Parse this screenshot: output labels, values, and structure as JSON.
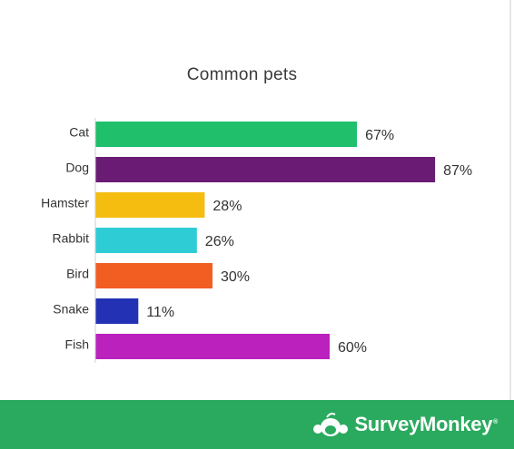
{
  "chart_data": {
    "type": "bar",
    "orientation": "horizontal",
    "title": "Common pets",
    "xlabel": "",
    "ylabel": "",
    "xlim": [
      0,
      100
    ],
    "grid": false,
    "categories": [
      "Cat",
      "Dog",
      "Hamster",
      "Rabbit",
      "Bird",
      "Snake",
      "Fish"
    ],
    "values": [
      67,
      87,
      28,
      26,
      30,
      11,
      60
    ],
    "value_labels": [
      "67%",
      "87%",
      "28%",
      "26%",
      "30%",
      "11%",
      "60%"
    ],
    "colors": [
      "#1fbf6b",
      "#6a1b74",
      "#f5bd10",
      "#2ecdd6",
      "#f25d22",
      "#2331b5",
      "#bb21bd"
    ]
  },
  "footer": {
    "brand": "SurveyMonkey",
    "registered_mark": "®",
    "logo_icon": "surveymonkey-logo-icon",
    "background": "#2aaa5e"
  }
}
